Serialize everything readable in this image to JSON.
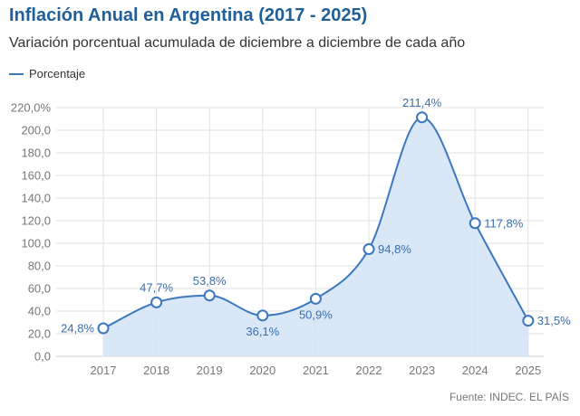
{
  "header": {
    "title": "Inflación Anual en Argentina (2017 - 2025)",
    "subtitle": "Variación porcentual acumulada de diciembre a diciembre de cada año"
  },
  "source": "Fuente: INDEC. EL PAÍS",
  "colors": {
    "title": "#1f5f9a",
    "line": "#3c78c0",
    "area": "#d5e4f6",
    "grid": "#e2e2e2"
  },
  "chart_data": {
    "type": "area",
    "x": [
      "2017",
      "2018",
      "2019",
      "2020",
      "2021",
      "2022",
      "2023",
      "2024",
      "2025"
    ],
    "series": [
      {
        "name": "Porcentaje",
        "values": [
          24.8,
          47.7,
          53.8,
          36.1,
          50.9,
          94.8,
          211.4,
          117.8,
          31.5
        ],
        "labels": [
          "24,8%",
          "47,7%",
          "53,8%",
          "36,1%",
          "50,9%",
          "94,8%",
          "211,4%",
          "117,8%",
          "31,5%"
        ]
      }
    ],
    "ylim": [
      0,
      220
    ],
    "yticks": [
      "0,0",
      "20,0",
      "40,0",
      "60,0",
      "80,0",
      "100,0",
      "120,0",
      "140,0",
      "160,0",
      "180,0",
      "200,0",
      "220,0%"
    ],
    "grid": true,
    "legend": "top-left"
  }
}
